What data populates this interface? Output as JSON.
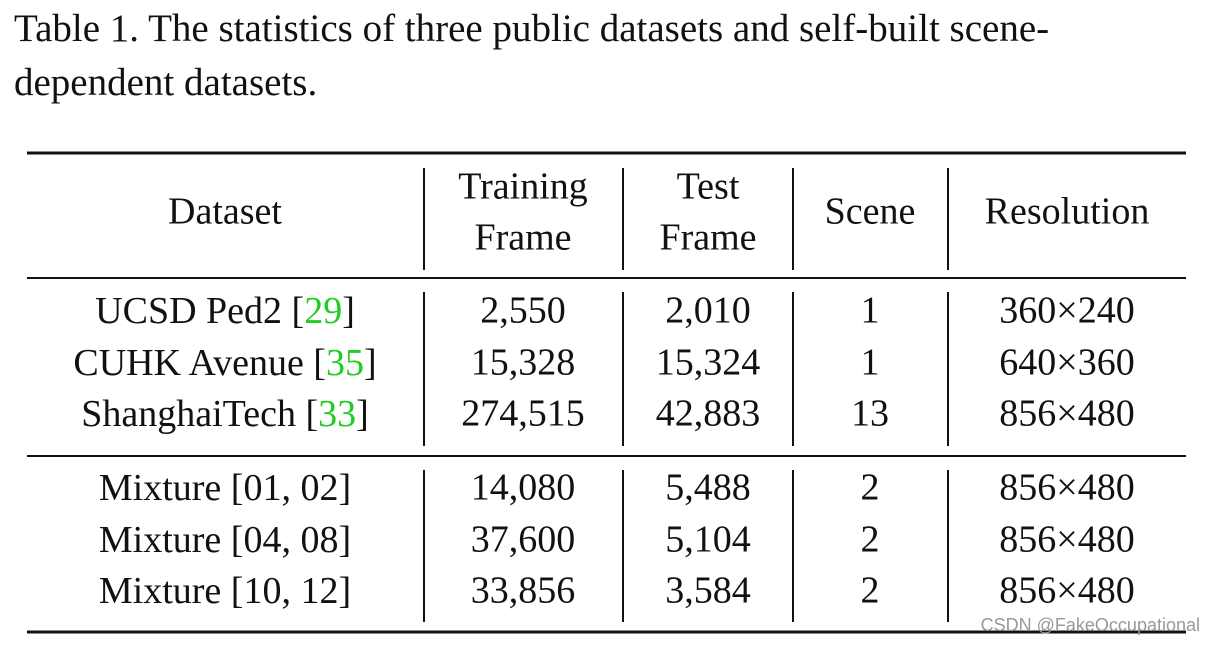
{
  "caption": [
    "Table 1. The statistics of three public datasets and self-built scene-",
    "dependent datasets."
  ],
  "table": {
    "header": [
      [
        "Dataset"
      ],
      [
        "Training",
        "Frame"
      ],
      [
        "Test",
        "Frame"
      ],
      [
        "Scene"
      ],
      [
        "Resolution"
      ]
    ],
    "groups": [
      [
        [
          [
            "UCSD Ped2 [",
            "29",
            "]"
          ],
          "2,550",
          "2,010",
          "1",
          "360×240"
        ],
        [
          [
            "CUHK Avenue [",
            "35",
            "]"
          ],
          "15,328",
          "15,324",
          "1",
          "640×360"
        ],
        [
          [
            "ShanghaiTech [",
            "33",
            "]"
          ],
          "274,515",
          "42,883",
          "13",
          "856×480"
        ]
      ],
      [
        [
          [
            "Mixture [01, 02]"
          ],
          "14,080",
          "5,488",
          "2",
          "856×480"
        ],
        [
          [
            "Mixture [04, 08]"
          ],
          "37,600",
          "5,104",
          "2",
          "856×480"
        ],
        [
          [
            "Mixture [10, 12]"
          ],
          "33,856",
          "3,584",
          "2",
          "856×480"
        ]
      ]
    ]
  },
  "watermark": "CSDN @FakeOccupational"
}
